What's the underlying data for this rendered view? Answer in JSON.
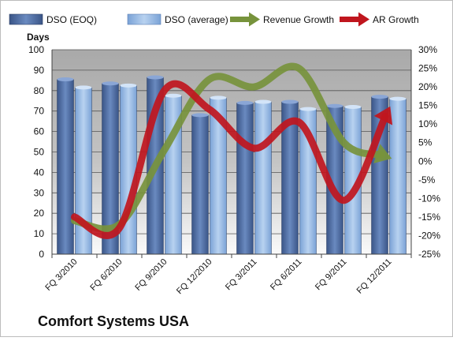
{
  "chart_data": {
    "type": "bar",
    "title": "Comfort Systems USA",
    "ylabel": "Days",
    "ylim": [
      0,
      100
    ],
    "y_ticks": [
      "0",
      "10",
      "20",
      "30",
      "40",
      "50",
      "60",
      "70",
      "80",
      "90",
      "100"
    ],
    "y2lim": [
      -25,
      30
    ],
    "y2_ticks": [
      "-25%",
      "-20%",
      "-15%",
      "-10%",
      "-5%",
      "0%",
      "5%",
      "10%",
      "15%",
      "20%",
      "25%",
      "30%"
    ],
    "categories": [
      "FQ 3/2010",
      "FQ 6/2010",
      "FQ 9/2010",
      "FQ 12/2010",
      "FQ 3/2011",
      "FQ 6/2011",
      "FQ 9/2011",
      "FQ 12/2011"
    ],
    "series": [
      {
        "name": "DSO (EOQ)",
        "kind": "bar",
        "axis": "left",
        "color": "#4a6699",
        "values": [
          85.5,
          83.5,
          86.5,
          68,
          74,
          74.5,
          72.5,
          77
        ]
      },
      {
        "name": "DSO (average)",
        "kind": "bar",
        "axis": "left",
        "color": "#8eb4e3",
        "values": [
          81.5,
          82.5,
          77.5,
          76.5,
          74.5,
          71,
          72,
          76
        ]
      },
      {
        "name": "Revenue Growth",
        "kind": "arrow-line",
        "axis": "right",
        "color": "#77933c",
        "values": [
          -16,
          -17,
          3,
          22,
          20,
          25,
          5,
          1
        ]
      },
      {
        "name": "AR Growth",
        "kind": "arrow-line",
        "axis": "right",
        "color": "#c0161e",
        "values": [
          -15,
          -18,
          19,
          14,
          3.5,
          10.5,
          -10.5,
          14
        ]
      }
    ],
    "grid": true,
    "legend_position": "top"
  }
}
